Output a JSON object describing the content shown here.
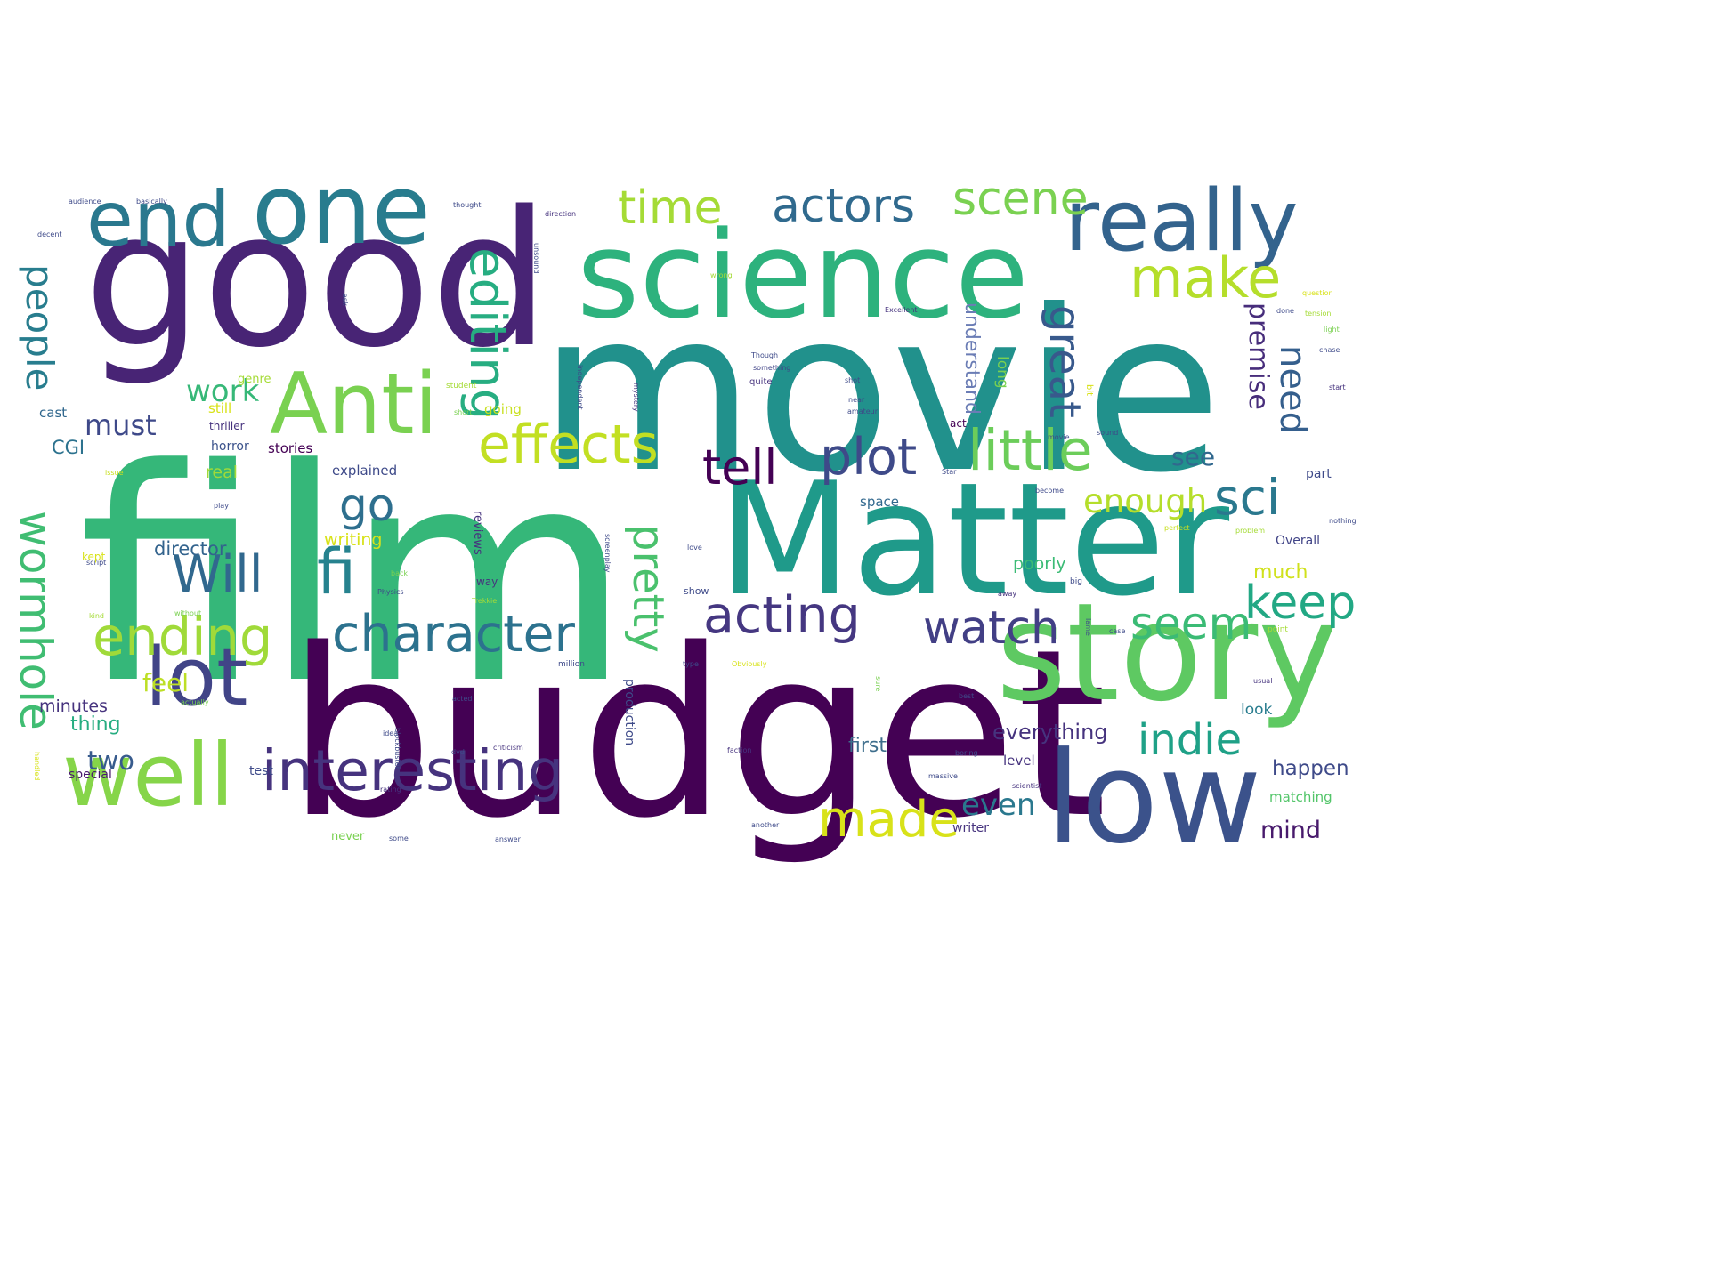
{
  "word_cloud": {
    "words": [
      {
        "text": "film",
        "color": "#35b779"
      },
      {
        "text": "movie",
        "color": "#21918c"
      },
      {
        "text": "good",
        "color": "#482475"
      },
      {
        "text": "budget",
        "color": "#440154"
      },
      {
        "text": "Matter",
        "color": "#1f9a8a"
      },
      {
        "text": "science",
        "color": "#2db27d"
      },
      {
        "text": "story",
        "color": "#5ec962"
      },
      {
        "text": "low",
        "color": "#3b528b"
      },
      {
        "text": "one",
        "color": "#287c8e"
      },
      {
        "text": "really",
        "color": "#33638d"
      },
      {
        "text": "Anti",
        "color": "#7ad151"
      },
      {
        "text": "end",
        "color": "#2a788e"
      },
      {
        "text": "well",
        "color": "#86d549"
      },
      {
        "text": "lot",
        "color": "#414487"
      },
      {
        "text": "interesting",
        "color": "#46337e"
      },
      {
        "text": "little",
        "color": "#6ccd5a"
      },
      {
        "text": "effects",
        "color": "#c2df23"
      },
      {
        "text": "character",
        "color": "#2c728e"
      },
      {
        "text": "acting",
        "color": "#453781"
      },
      {
        "text": "plot",
        "color": "#3e4a89"
      },
      {
        "text": "actors",
        "color": "#306a8e"
      },
      {
        "text": "scene",
        "color": "#7ad151"
      },
      {
        "text": "time",
        "color": "#a5db36"
      },
      {
        "text": "make",
        "color": "#b5de2b"
      },
      {
        "text": "editing",
        "color": "#27ad81"
      },
      {
        "text": "people",
        "color": "#287d8e"
      },
      {
        "text": "wormhole",
        "color": "#40bd72"
      },
      {
        "text": "pretty",
        "color": "#4ac16d"
      },
      {
        "text": "ending",
        "color": "#a0da39"
      },
      {
        "text": "fi",
        "color": "#26828e"
      },
      {
        "text": "Will",
        "color": "#31688e"
      },
      {
        "text": "go",
        "color": "#2e6f8e"
      },
      {
        "text": "tell",
        "color": "#440154"
      },
      {
        "text": "sci",
        "color": "#2a788e"
      },
      {
        "text": "watch",
        "color": "#423f85"
      },
      {
        "text": "keep",
        "color": "#22a884"
      },
      {
        "text": "seem",
        "color": "#3bbb75"
      },
      {
        "text": "indie",
        "color": "#1fa187"
      },
      {
        "text": "made",
        "color": "#d8e219"
      },
      {
        "text": "great",
        "color": "#38598c"
      },
      {
        "text": "need",
        "color": "#355f8d"
      },
      {
        "text": "premise",
        "color": "#472d7b"
      },
      {
        "text": "even",
        "color": "#2a788e"
      },
      {
        "text": "enough",
        "color": "#b5de2b"
      },
      {
        "text": "work",
        "color": "#37b878"
      },
      {
        "text": "must",
        "color": "#3e4989"
      },
      {
        "text": "two",
        "color": "#375b8d"
      },
      {
        "text": "feel",
        "color": "#bddf26"
      },
      {
        "text": "see",
        "color": "#31688e"
      },
      {
        "text": "understand",
        "color": "#6b7db5"
      },
      {
        "text": "everything",
        "color": "#46337e"
      },
      {
        "text": "first",
        "color": "#3e6e8c"
      },
      {
        "text": "happen",
        "color": "#3e4a89"
      },
      {
        "text": "mind",
        "color": "#481a6c"
      },
      {
        "text": "much",
        "color": "#d0e11c"
      },
      {
        "text": "minutes",
        "color": "#46337e"
      },
      {
        "text": "thing",
        "color": "#27ad81"
      },
      {
        "text": "CGI",
        "color": "#2c728e"
      },
      {
        "text": "director",
        "color": "#33638d"
      },
      {
        "text": "writing",
        "color": "#d8e219"
      },
      {
        "text": "real",
        "color": "#a0da39"
      },
      {
        "text": "stories",
        "color": "#440154"
      },
      {
        "text": "horror",
        "color": "#3b528b"
      },
      {
        "text": "going",
        "color": "#c8e020"
      },
      {
        "text": "explained",
        "color": "#3e4a89"
      },
      {
        "text": "long",
        "color": "#7ad151"
      },
      {
        "text": "look",
        "color": "#287c8e"
      },
      {
        "text": "matching",
        "color": "#52c569"
      },
      {
        "text": "poorly",
        "color": "#3bbb75"
      },
      {
        "text": "reviews",
        "color": "#46337e"
      },
      {
        "text": "production",
        "color": "#3e4a89"
      },
      {
        "text": "level",
        "color": "#46337e"
      },
      {
        "text": "space",
        "color": "#31688e"
      },
      {
        "text": "Overall",
        "color": "#414487"
      },
      {
        "text": "part",
        "color": "#3e4a89"
      },
      {
        "text": "cast",
        "color": "#31688e"
      },
      {
        "text": "still",
        "color": "#d8e219"
      },
      {
        "text": "genre",
        "color": "#a5db36"
      },
      {
        "text": "thriller",
        "color": "#46337e"
      },
      {
        "text": "special",
        "color": "#481a6c"
      },
      {
        "text": "test",
        "color": "#3e4a89"
      },
      {
        "text": "writer",
        "color": "#46337e"
      },
      {
        "text": "never",
        "color": "#7ad151"
      },
      {
        "text": "Excellent",
        "color": "#46337e"
      },
      {
        "text": "act",
        "color": "#440154"
      },
      {
        "text": "Though",
        "color": "#3e4a89"
      },
      {
        "text": "something",
        "color": "#414487"
      },
      {
        "text": "quite",
        "color": "#46337e"
      },
      {
        "text": "student",
        "color": "#a5db36"
      },
      {
        "text": "independent",
        "color": "#3e4a89"
      },
      {
        "text": "mystery",
        "color": "#46337e"
      },
      {
        "text": "amateur",
        "color": "#3e4a89"
      },
      {
        "text": "short",
        "color": "#7ad151"
      },
      {
        "text": "near",
        "color": "#3e4a89"
      },
      {
        "text": "shot",
        "color": "#3e4a89"
      },
      {
        "text": "direction",
        "color": "#46337e"
      },
      {
        "text": "thought",
        "color": "#3e4a89"
      },
      {
        "text": "sound",
        "color": "#3e4a89"
      },
      {
        "text": "wrong",
        "color": "#a5db36"
      },
      {
        "text": "audience",
        "color": "#3e4a89"
      },
      {
        "text": "basically",
        "color": "#3e4a89"
      },
      {
        "text": "decent",
        "color": "#3e4a89"
      },
      {
        "text": "question",
        "color": "#d8e219"
      },
      {
        "text": "tension",
        "color": "#a5db36"
      },
      {
        "text": "light",
        "color": "#7ad151"
      },
      {
        "text": "done",
        "color": "#3e4a89"
      },
      {
        "text": "chase",
        "color": "#3e4a89"
      },
      {
        "text": "start",
        "color": "#46337e"
      },
      {
        "text": "perfect",
        "color": "#c8e020"
      },
      {
        "text": "problem",
        "color": "#a5db36"
      },
      {
        "text": "nothing",
        "color": "#3e4a89"
      },
      {
        "text": "point",
        "color": "#a5db36"
      },
      {
        "text": "usual",
        "color": "#46337e"
      },
      {
        "text": "best",
        "color": "#3e4a89"
      },
      {
        "text": "script",
        "color": "#3e4a89"
      },
      {
        "text": "play",
        "color": "#3e4a89"
      },
      {
        "text": "kind",
        "color": "#a5db36"
      },
      {
        "text": "without",
        "color": "#7ad151"
      },
      {
        "text": "Physics",
        "color": "#3e4a89"
      },
      {
        "text": "Trekkie",
        "color": "#a5db36"
      },
      {
        "text": "back",
        "color": "#7ad151"
      },
      {
        "text": "way",
        "color": "#46337e"
      },
      {
        "text": "screenplay",
        "color": "#3e4a89"
      },
      {
        "text": "love",
        "color": "#3e4a89"
      },
      {
        "text": "show",
        "color": "#3e4a89"
      },
      {
        "text": "big",
        "color": "#3e4a89"
      },
      {
        "text": "away",
        "color": "#46337e"
      },
      {
        "text": "million",
        "color": "#3e4a89"
      },
      {
        "text": "Obviously",
        "color": "#d8e219"
      },
      {
        "text": "type",
        "color": "#3e4a89"
      },
      {
        "text": "actually",
        "color": "#7ad151"
      },
      {
        "text": "acted",
        "color": "#3e4a89"
      },
      {
        "text": "idea",
        "color": "#3e4a89"
      },
      {
        "text": "blockbuster",
        "color": "#3e4a89"
      },
      {
        "text": "dvd",
        "color": "#3e4a89"
      },
      {
        "text": "criticism",
        "color": "#46337e"
      },
      {
        "text": "faction",
        "color": "#46337e"
      },
      {
        "text": "boring",
        "color": "#3e4a89"
      },
      {
        "text": "massive",
        "color": "#3e4a89"
      },
      {
        "text": "scientist",
        "color": "#46337e"
      },
      {
        "text": "rating",
        "color": "#46337e"
      },
      {
        "text": "some",
        "color": "#3e4a89"
      },
      {
        "text": "answer",
        "color": "#3e4a89"
      },
      {
        "text": "another",
        "color": "#3e4a89"
      },
      {
        "text": "handled",
        "color": "#d8e219"
      },
      {
        "text": "kept",
        "color": "#d8e219"
      },
      {
        "text": "issue",
        "color": "#c8e020"
      },
      {
        "text": "sure",
        "color": "#7ad151"
      },
      {
        "text": "Star",
        "color": "#3e4a89"
      },
      {
        "text": "movie",
        "color": "#3e4a89"
      },
      {
        "text": "become",
        "color": "#3e4a89"
      },
      {
        "text": "ask",
        "color": "#3e4a89"
      },
      {
        "text": "unsound",
        "color": "#3e4a89"
      },
      {
        "text": "case",
        "color": "#3e4a89"
      },
      {
        "text": "bit",
        "color": "#d8e219"
      },
      {
        "text": "lame",
        "color": "#3e4a89"
      }
    ]
  }
}
